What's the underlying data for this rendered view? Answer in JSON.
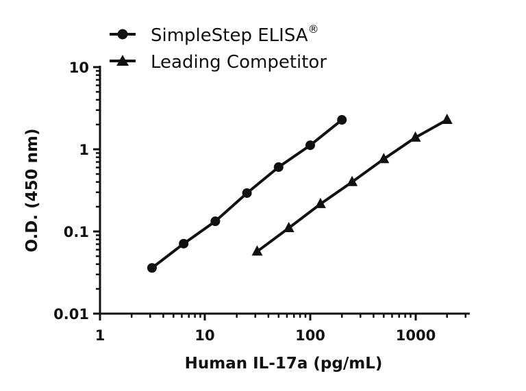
{
  "chart_data": {
    "type": "line",
    "title": "",
    "xlabel": "Human IL-17a (pg/mL)",
    "ylabel": "O.D. (450 nm)",
    "xscale": "log",
    "yscale": "log",
    "xlim": [
      1,
      3000
    ],
    "ylim": [
      0.01,
      10
    ],
    "x_ticks": [
      "1",
      "10",
      "100",
      "1000"
    ],
    "y_ticks": [
      "10",
      "1",
      "0.1",
      "0.01"
    ],
    "legend_position": "top-left",
    "grid": false,
    "series": [
      {
        "name": "SimpleStep ELISA®",
        "marker": "circle",
        "x": [
          3.125,
          6.25,
          12.5,
          25,
          50,
          100,
          200
        ],
        "y": [
          0.036,
          0.071,
          0.133,
          0.293,
          0.607,
          1.12,
          2.28
        ]
      },
      {
        "name": "Leading Competitor",
        "marker": "triangle",
        "x": [
          31.25,
          62.5,
          125,
          250,
          500,
          1000,
          2000
        ],
        "y": [
          0.057,
          0.11,
          0.216,
          0.4,
          0.76,
          1.39,
          2.28
        ]
      }
    ]
  },
  "legend": {
    "items": [
      {
        "label": "SimpleStep ELISA",
        "sup": "®"
      },
      {
        "label": "Leading Competitor",
        "sup": ""
      }
    ]
  },
  "axes": {
    "x_title": "Human IL-17a (pg/mL)",
    "y_title": "O.D. (450 nm)",
    "x_tick_labels": [
      "1",
      "10",
      "100",
      "1000"
    ],
    "y_tick_labels": [
      "10",
      "1",
      "0.1",
      "0.01"
    ]
  },
  "colors": {
    "ink": "#111111",
    "background": "#ffffff"
  }
}
